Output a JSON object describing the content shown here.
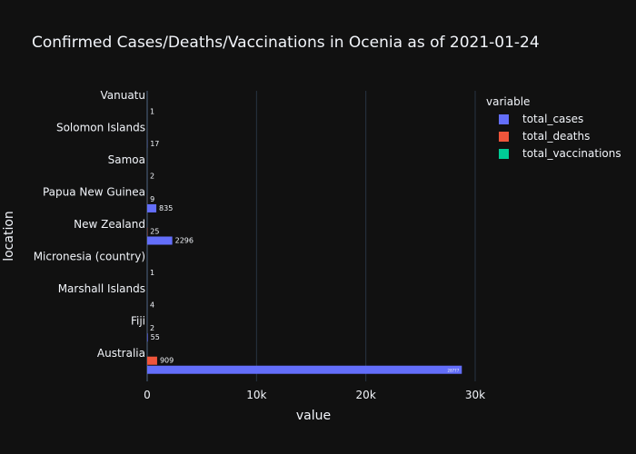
{
  "chart_data": {
    "type": "bar",
    "orientation": "horizontal",
    "barmode": "group",
    "title": "Confirmed Cases/Deaths/Vaccinations in Ocenia as of 2021-01-24",
    "xlabel": "value",
    "ylabel": "location",
    "xlim": [
      0,
      30000
    ],
    "x_ticks": [
      0,
      10000,
      20000,
      30000
    ],
    "x_tick_labels": [
      "0",
      "10k",
      "20k",
      "30k"
    ],
    "grid": true,
    "legend": {
      "title": "variable",
      "position": "top-right"
    },
    "categories": [
      "Australia",
      "Fiji",
      "Marshall Islands",
      "Micronesia (country)",
      "New Zealand",
      "Papua New Guinea",
      "Samoa",
      "Solomon Islands",
      "Vanuatu"
    ],
    "series": [
      {
        "name": "total_cases",
        "color": "#636efa",
        "values": [
          28777,
          55,
          4,
          1,
          2296,
          835,
          2,
          17,
          1
        ],
        "labels": [
          "28777",
          "55",
          "4",
          "1",
          "2296",
          "835",
          "2",
          "17",
          "1"
        ]
      },
      {
        "name": "total_deaths",
        "color": "#EF553B",
        "values": [
          909,
          2,
          null,
          null,
          25,
          9,
          null,
          null,
          null
        ],
        "labels": [
          "909",
          "2",
          "",
          "",
          "25",
          "9",
          "",
          "",
          ""
        ]
      },
      {
        "name": "total_vaccinations",
        "color": "#00cc96",
        "values": [
          null,
          null,
          null,
          null,
          null,
          null,
          null,
          null,
          null
        ],
        "labels": [
          "",
          "",
          "",
          "",
          "",
          "",
          "",
          "",
          ""
        ]
      }
    ]
  }
}
